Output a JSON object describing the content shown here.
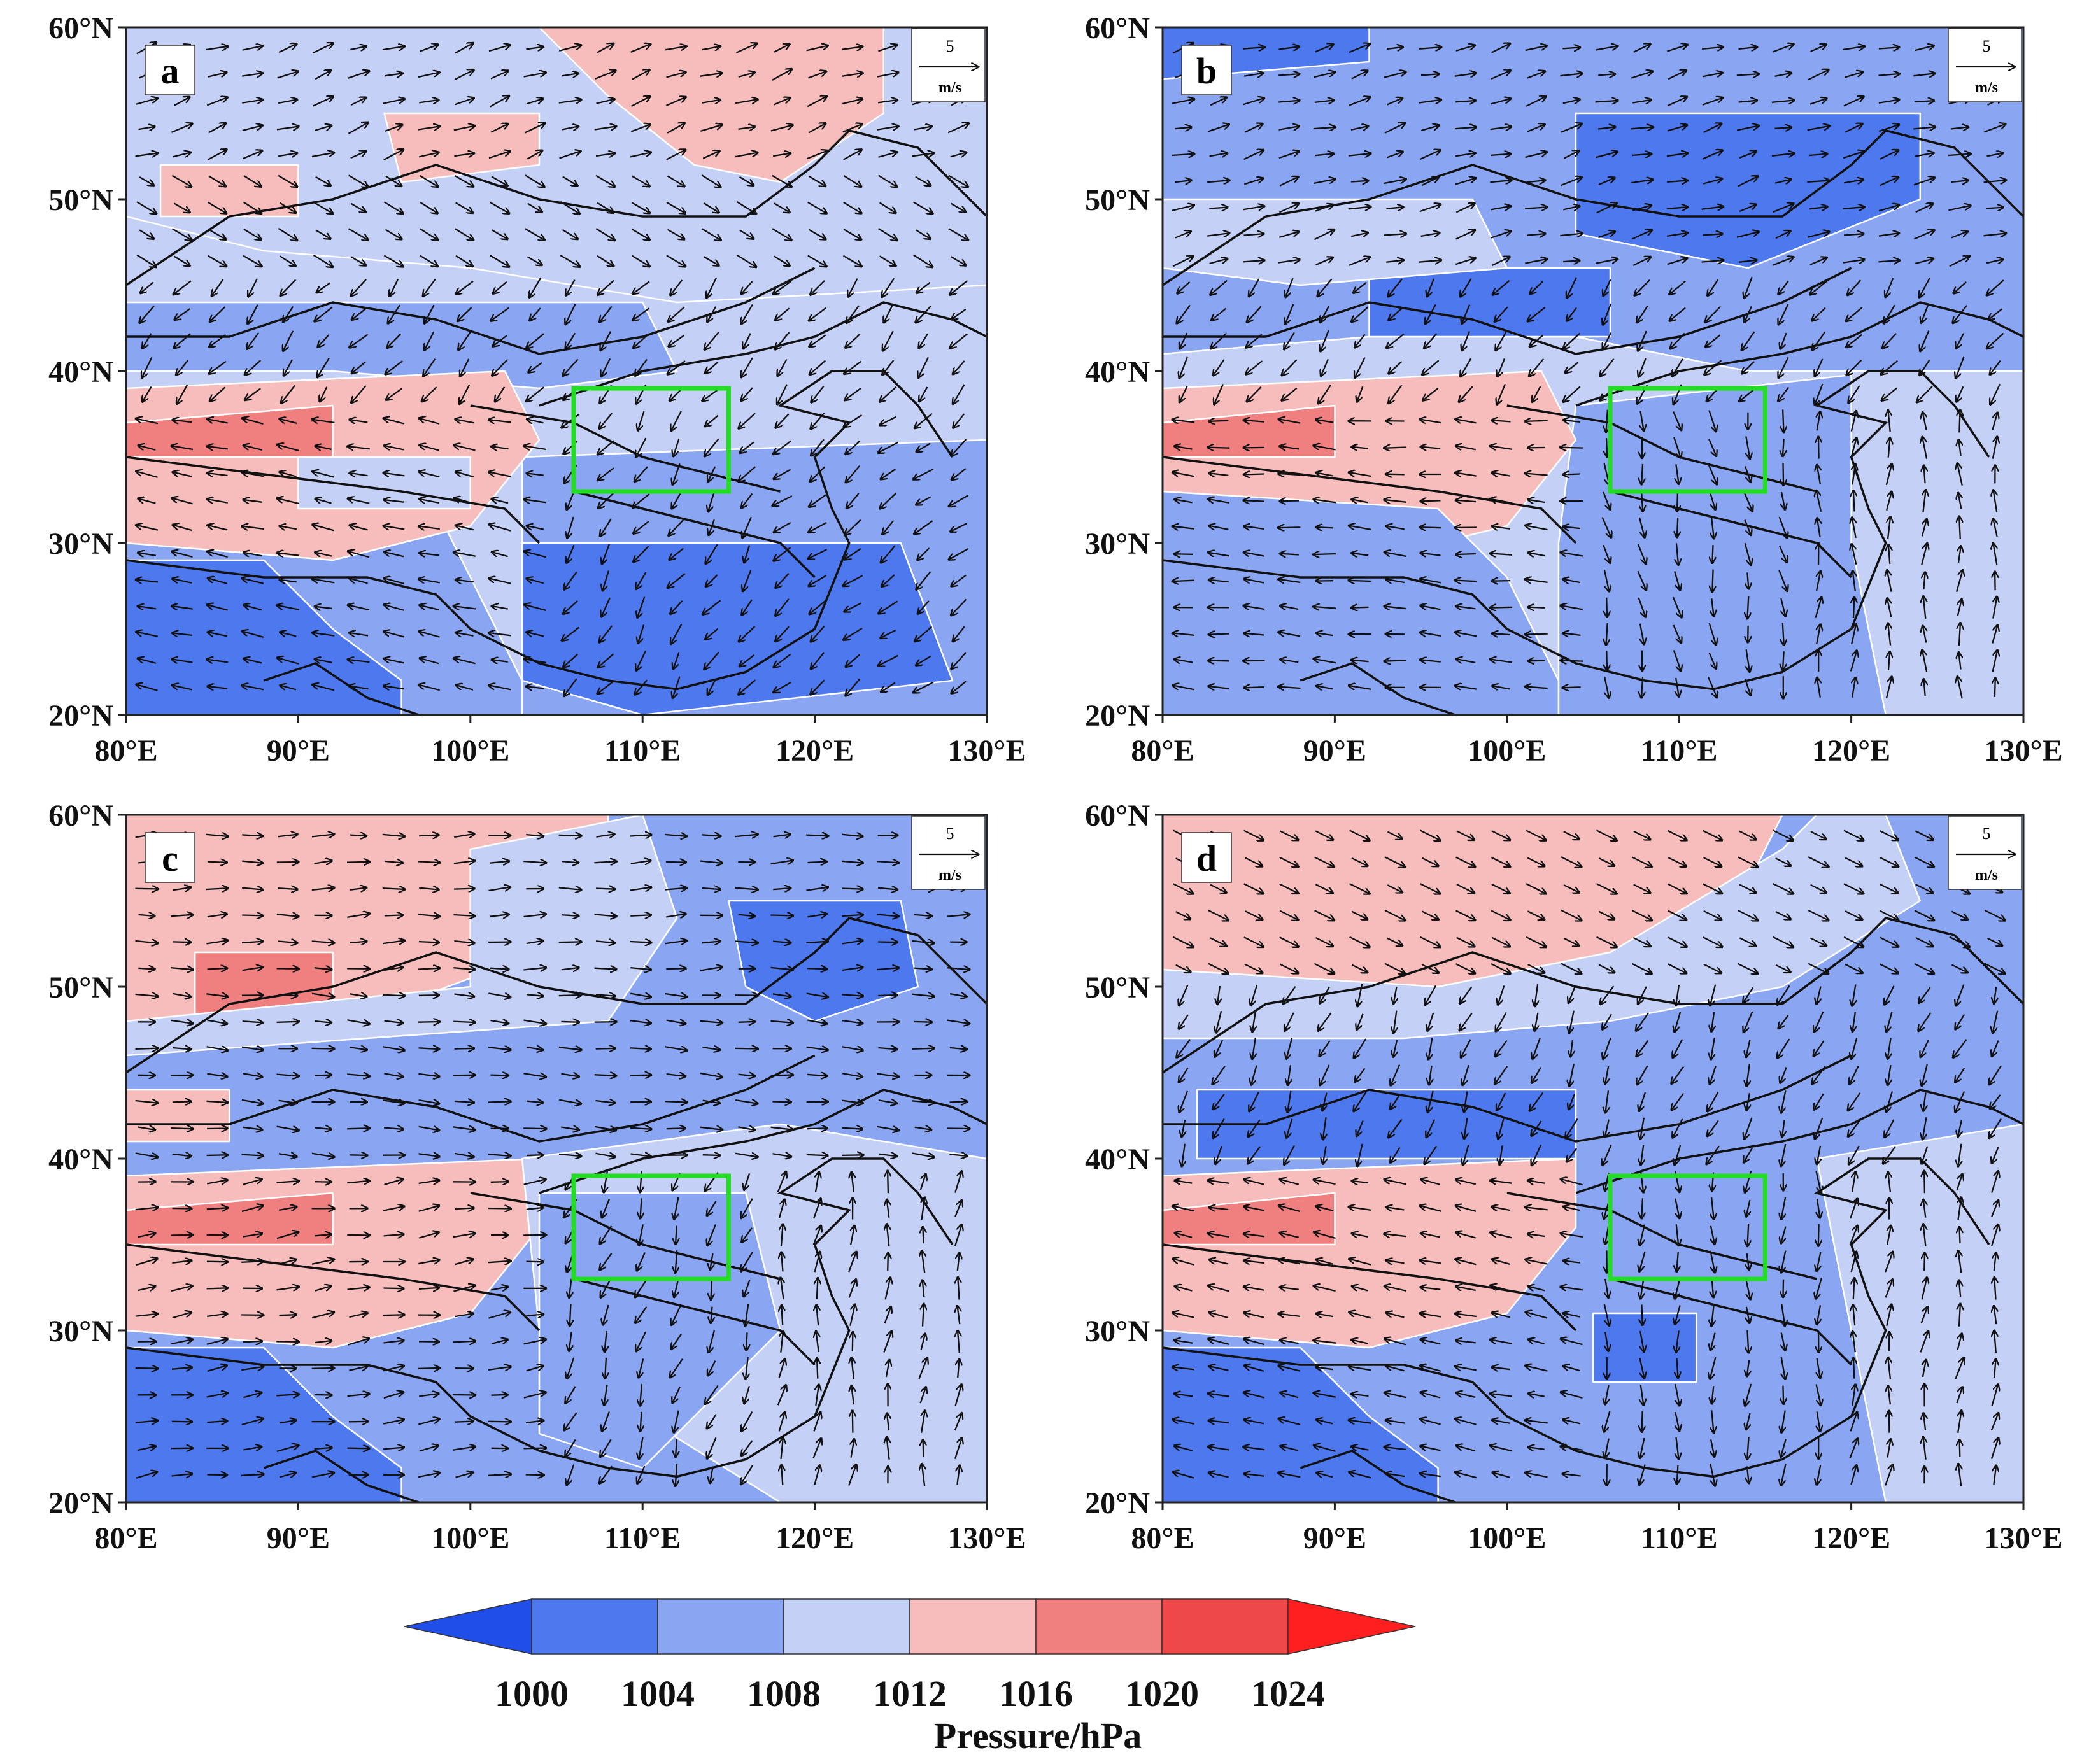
{
  "figure": {
    "panels": [
      {
        "id": "a",
        "label": "a"
      },
      {
        "id": "b",
        "label": "b"
      },
      {
        "id": "c",
        "label": "c"
      },
      {
        "id": "d",
        "label": "d"
      }
    ],
    "lat_ticks": [
      "60°N",
      "50°N",
      "40°N",
      "30°N",
      "20°N"
    ],
    "lon_ticks": [
      "80°E",
      "90°E",
      "100°E",
      "110°E",
      "120°E",
      "130°E"
    ],
    "reference_vector": {
      "value": "5",
      "unit": "m/s"
    },
    "map_extent": {
      "lon": [
        80,
        130
      ],
      "lat": [
        20,
        60
      ]
    },
    "study_box": {
      "lon": [
        106,
        115
      ],
      "lat": [
        33,
        39
      ],
      "color": "#22dd22"
    }
  },
  "colorbar": {
    "title": "Pressure/hPa",
    "levels": [
      "1000",
      "1004",
      "1008",
      "1012",
      "1016",
      "1020",
      "1024"
    ],
    "colors": [
      "#1f4fe8",
      "#4d78ee",
      "#8aa6f2",
      "#c4d0f6",
      "#f7bcbc",
      "#f08080",
      "#ee4848",
      "#ff1f1f"
    ]
  },
  "icons": {
    "reference_arrow": "right-arrow-icon",
    "study_box": "rectangle-icon"
  }
}
